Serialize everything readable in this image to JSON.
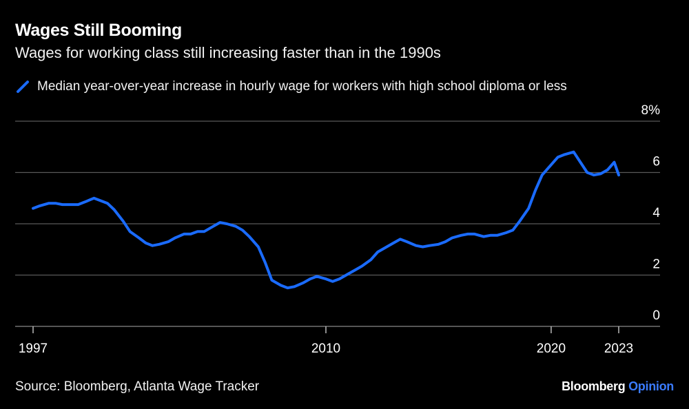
{
  "title": "Wages Still Booming",
  "subtitle": "Wages for working class still increasing faster than in the 1990s",
  "source": "Source: Bloomberg, Atlanta Wage Tracker",
  "brand": {
    "name": "Bloomberg",
    "product": "Opinion"
  },
  "colors": {
    "background": "#000000",
    "series": "#1a6bff",
    "grid": "#5a5a5a",
    "text": "#ffffff"
  },
  "chart_data": {
    "type": "line",
    "title": "Wages Still Booming",
    "subtitle": "Wages for working class still increasing faster than in the 1990s",
    "xlabel": "",
    "ylabel": "",
    "xlim": [
      1997,
      2023.5
    ],
    "ylim": [
      0,
      8
    ],
    "x_ticks": [
      {
        "value": 1997,
        "label": "1997"
      },
      {
        "value": 2010,
        "label": "2010"
      },
      {
        "value": 2020,
        "label": "2020"
      },
      {
        "value": 2023,
        "label": "2023"
      }
    ],
    "y_ticks": [
      {
        "value": 0,
        "label": "0"
      },
      {
        "value": 2,
        "label": "2"
      },
      {
        "value": 4,
        "label": "4"
      },
      {
        "value": 6,
        "label": "6"
      },
      {
        "value": 8,
        "label": "8%"
      }
    ],
    "grid": true,
    "legend_position": "top-left",
    "series": [
      {
        "name": "Median year-over-year increase in hourly wage for workers with high school diploma or less",
        "x": [
          1997.0,
          1997.3,
          1997.7,
          1998.0,
          1998.3,
          1998.6,
          1999.0,
          1999.3,
          1999.7,
          2000.0,
          2000.3,
          2000.6,
          2001.0,
          2001.3,
          2001.7,
          2002.0,
          2002.3,
          2002.6,
          2003.0,
          2003.3,
          2003.7,
          2004.0,
          2004.3,
          2004.6,
          2005.0,
          2005.3,
          2005.6,
          2006.0,
          2006.3,
          2006.6,
          2007.0,
          2007.3,
          2007.6,
          2008.0,
          2008.3,
          2008.6,
          2009.0,
          2009.3,
          2009.6,
          2010.0,
          2010.3,
          2010.6,
          2011.0,
          2011.3,
          2011.6,
          2012.0,
          2012.3,
          2012.6,
          2013.0,
          2013.3,
          2013.6,
          2014.0,
          2014.3,
          2014.6,
          2015.0,
          2015.3,
          2015.6,
          2016.0,
          2016.3,
          2016.6,
          2017.0,
          2017.3,
          2017.6,
          2018.0,
          2018.3,
          2018.6,
          2019.0,
          2019.3,
          2019.6,
          2020.0,
          2020.3,
          2020.6,
          2021.0,
          2021.3,
          2021.6,
          2021.9,
          2022.2,
          2022.5,
          2022.8,
          2023.0
        ],
        "values": [
          4.6,
          4.7,
          4.8,
          4.8,
          4.75,
          4.75,
          4.75,
          4.85,
          5.0,
          4.9,
          4.8,
          4.55,
          4.1,
          3.7,
          3.45,
          3.25,
          3.15,
          3.2,
          3.3,
          3.45,
          3.6,
          3.6,
          3.7,
          3.7,
          3.9,
          4.05,
          4.0,
          3.9,
          3.75,
          3.5,
          3.1,
          2.5,
          1.8,
          1.6,
          1.5,
          1.55,
          1.7,
          1.85,
          1.95,
          1.85,
          1.75,
          1.85,
          2.05,
          2.2,
          2.35,
          2.6,
          2.9,
          3.05,
          3.25,
          3.4,
          3.3,
          3.15,
          3.1,
          3.15,
          3.2,
          3.3,
          3.45,
          3.55,
          3.6,
          3.6,
          3.5,
          3.55,
          3.55,
          3.65,
          3.75,
          4.1,
          4.6,
          5.3,
          5.9,
          6.3,
          6.6,
          6.7,
          6.8,
          6.4,
          6.0,
          5.9,
          5.95,
          6.1,
          6.4,
          5.9
        ]
      }
    ]
  }
}
